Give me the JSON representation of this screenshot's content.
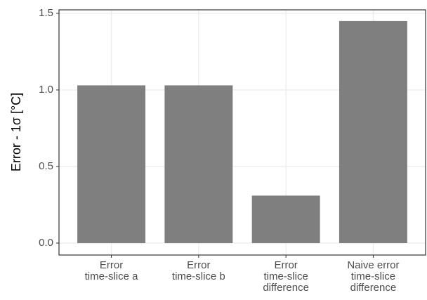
{
  "chart_data": {
    "type": "bar",
    "y_label": "Error - 1σ [°C]",
    "categories": [
      "Error\ntime-slice a",
      "Error\ntime-slice b",
      "Error\ntime-slice\ndifference",
      "Naive error\ntime-slice\ndifference"
    ],
    "values": [
      1.03,
      1.03,
      0.31,
      1.45
    ],
    "color": "#7f7f7f",
    "ylim": [
      -0.078,
      1.523
    ],
    "yticks": [
      {
        "value": 0,
        "label": "0.0"
      },
      0.5,
      {
        "value": 1,
        "label": "1.0"
      },
      1.5
    ],
    "grid": true
  }
}
